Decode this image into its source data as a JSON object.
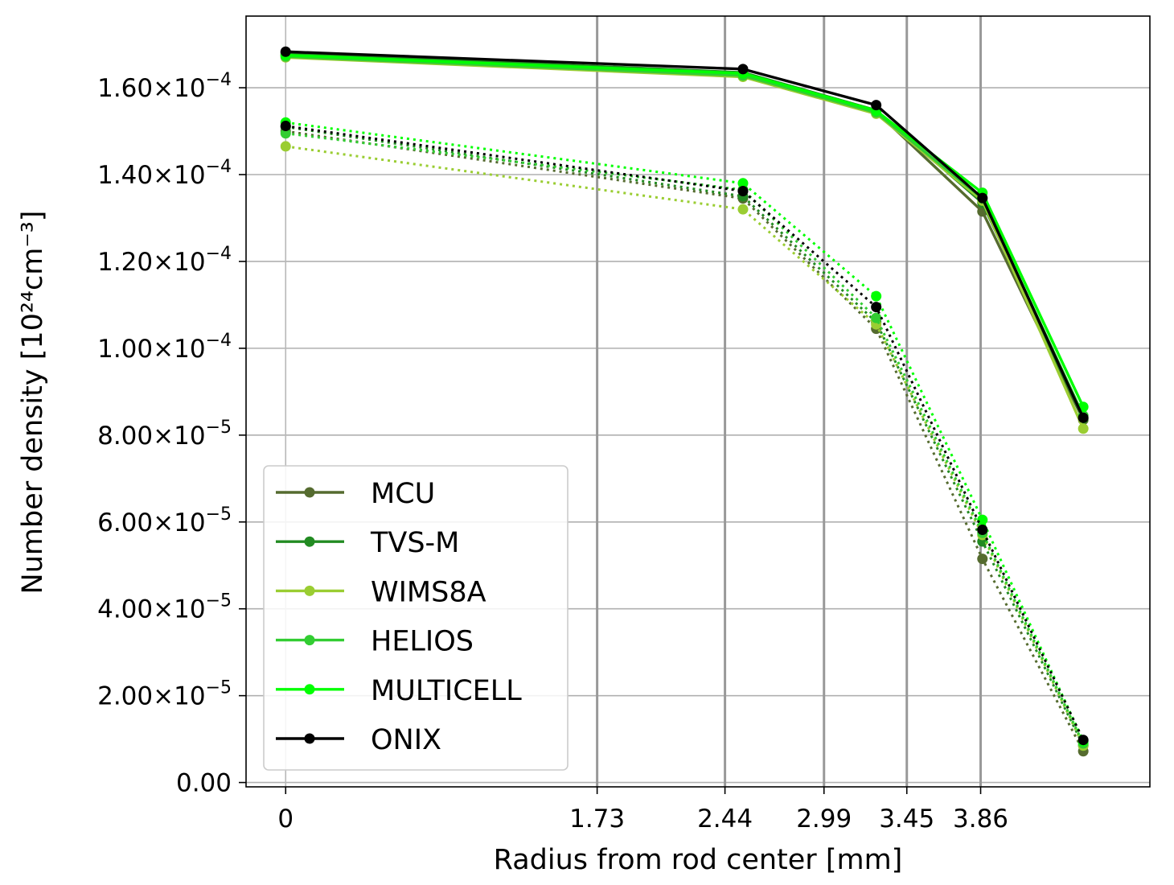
{
  "chart_data": {
    "type": "line",
    "xlabel": "Radius from rod center [mm]",
    "ylabel": "Number density [10²⁴cm⁻³]",
    "xlim": [
      -0.22,
      4.8
    ],
    "ylim": [
      -1e-06,
      0.0001765
    ],
    "x_gridlines": [
      0,
      1.73,
      2.44,
      2.99,
      3.45,
      3.86
    ],
    "x_ticks": [
      {
        "value": 0,
        "label": "0"
      },
      {
        "value": 1.73,
        "label": "1.73"
      },
      {
        "value": 2.44,
        "label": "2.44"
      },
      {
        "value": 2.99,
        "label": "2.99"
      },
      {
        "value": 3.45,
        "label": "3.45"
      },
      {
        "value": 3.86,
        "label": "3.86"
      }
    ],
    "y_ticks": [
      {
        "value": 0,
        "mantissa": "0.00",
        "exp": ""
      },
      {
        "value": 2e-05,
        "mantissa": "2.00×10",
        "exp": "−5"
      },
      {
        "value": 4e-05,
        "mantissa": "4.00×10",
        "exp": "−5"
      },
      {
        "value": 6e-05,
        "mantissa": "6.00×10",
        "exp": "−5"
      },
      {
        "value": 8e-05,
        "mantissa": "8.00×10",
        "exp": "−5"
      },
      {
        "value": 0.0001,
        "mantissa": "1.00×10",
        "exp": "−4"
      },
      {
        "value": 0.00012,
        "mantissa": "1.20×10",
        "exp": "−4"
      },
      {
        "value": 0.00014,
        "mantissa": "1.40×10",
        "exp": "−4"
      },
      {
        "value": 0.00016,
        "mantissa": "1.60×10",
        "exp": "−4"
      }
    ],
    "x": [
      0,
      2.54,
      3.28,
      3.87,
      4.43
    ],
    "grid": true,
    "legend_placement": "lower-left",
    "series": [
      {
        "name": "MCU",
        "color": "#556b2f",
        "solid": [
          0.0001675,
          0.000163,
          0.0001545,
          0.0001315,
          8.35e-05
        ],
        "dotted": [
          0.00015,
          0.0001345,
          0.0001045,
          5.15e-05,
          7.2e-06
        ]
      },
      {
        "name": "TVS-M",
        "color": "#228b22",
        "solid": [
          0.000168,
          0.0001635,
          0.0001548,
          0.0001335,
          8.38e-05
        ],
        "dotted": [
          0.000151,
          0.000135,
          0.000106,
          5.55e-05,
          8.5e-06
        ]
      },
      {
        "name": "WIMS8A",
        "color": "#9acd32",
        "solid": [
          0.000167,
          0.0001625,
          0.000154,
          0.000134,
          8.15e-05
        ],
        "dotted": [
          0.0001465,
          0.000132,
          0.0001055,
          5.7e-05,
          8.5e-06
        ]
      },
      {
        "name": "HELIOS",
        "color": "#32cd32",
        "solid": [
          0.0001672,
          0.0001628,
          0.0001543,
          0.0001345,
          8.45e-05
        ],
        "dotted": [
          0.0001495,
          0.0001365,
          0.000107,
          5.75e-05,
          9e-06
        ]
      },
      {
        "name": "MULTICELL",
        "color": "#00ff00",
        "solid": [
          0.0001675,
          0.0001633,
          0.0001547,
          0.0001358,
          8.65e-05
        ],
        "dotted": [
          0.000152,
          0.000138,
          0.000112,
          6.05e-05,
          9.5e-06
        ]
      },
      {
        "name": "ONIX",
        "color": "#000000",
        "solid": [
          0.0001683,
          0.0001643,
          0.000156,
          0.0001346,
          8.4e-05
        ],
        "dotted": [
          0.0001512,
          0.0001362,
          0.0001095,
          5.82e-05,
          9.8e-06
        ]
      }
    ]
  }
}
